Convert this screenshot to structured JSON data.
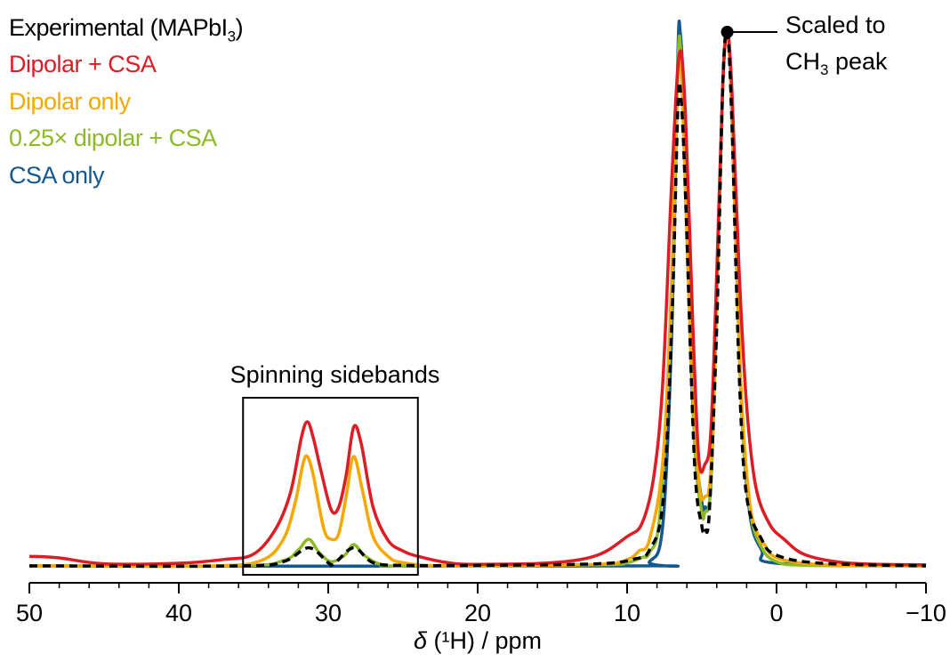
{
  "chart_data": {
    "type": "line",
    "xlabel": {
      "symbol": "δ",
      "rest": " (¹H) / ppm"
    },
    "xlim": [
      50,
      -10
    ],
    "ylim": [
      0,
      1
    ],
    "grid": false,
    "legend_position": "top-left",
    "x_ticks": [
      50,
      40,
      30,
      20,
      10,
      0,
      -10
    ],
    "x_tick_labels": [
      "50",
      "40",
      "30",
      "20",
      "10",
      "0",
      "−10"
    ],
    "minor_tick_step": 2,
    "annotations": {
      "box_label": "Spinning sidebands",
      "box_range_x": [
        35.7,
        24.0
      ],
      "scaled_line1": "Scaled to",
      "scaled_line2_a": "CH",
      "scaled_line2_sub": "3",
      "scaled_line2_b": " peak"
    },
    "series": [
      {
        "name": "Experimental (MAPbI3)",
        "legend_label": "Experimental (MAPbI",
        "legend_sub": "3",
        "legend_suffix": ")",
        "color": "#000000",
        "dashed": true,
        "points": [
          [
            50,
            0
          ],
          [
            36,
            0
          ],
          [
            33,
            0.008
          ],
          [
            31.3,
            0.034
          ],
          [
            30,
            0.006
          ],
          [
            29.6,
            0.004
          ],
          [
            28.3,
            0.034
          ],
          [
            27,
            0.006
          ],
          [
            25,
            0.001
          ],
          [
            20,
            0.001
          ],
          [
            12,
            0.004
          ],
          [
            9.5,
            0.013
          ],
          [
            8.5,
            0.03
          ],
          [
            7.6,
            0.12
          ],
          [
            7.0,
            0.46
          ],
          [
            6.6,
            0.86
          ],
          [
            6.4,
            0.88
          ],
          [
            6.1,
            0.7
          ],
          [
            5.5,
            0.2
          ],
          [
            5.0,
            0.075
          ],
          [
            4.8,
            0.07
          ],
          [
            4.5,
            0.1
          ],
          [
            4.0,
            0.45
          ],
          [
            3.6,
            0.9
          ],
          [
            3.3,
            1.0
          ],
          [
            3.0,
            0.84
          ],
          [
            2.5,
            0.36
          ],
          [
            2.0,
            0.13
          ],
          [
            1.0,
            0.05
          ],
          [
            0,
            0.02
          ],
          [
            -3,
            0.005
          ],
          [
            -10,
            0
          ]
        ]
      },
      {
        "name": "Dipolar + CSA",
        "legend_label": "Dipolar + CSA",
        "color": "#dd1c24",
        "dashed": false,
        "points": [
          [
            50,
            0.018
          ],
          [
            48,
            0.015
          ],
          [
            45,
            0.004
          ],
          [
            40,
            0.005
          ],
          [
            37,
            0.012
          ],
          [
            35,
            0.022
          ],
          [
            33.5,
            0.07
          ],
          [
            32.5,
            0.14
          ],
          [
            31.8,
            0.24
          ],
          [
            31.4,
            0.27
          ],
          [
            31,
            0.24
          ],
          [
            30.5,
            0.18
          ],
          [
            29.8,
            0.105
          ],
          [
            29.3,
            0.11
          ],
          [
            28.8,
            0.17
          ],
          [
            28.3,
            0.26
          ],
          [
            27.8,
            0.23
          ],
          [
            27,
            0.11
          ],
          [
            26,
            0.048
          ],
          [
            25,
            0.028
          ],
          [
            24,
            0.018
          ],
          [
            22,
            0.006
          ],
          [
            20,
            0.003
          ],
          [
            15,
            0.006
          ],
          [
            12,
            0.02
          ],
          [
            10,
            0.055
          ],
          [
            9,
            0.08
          ],
          [
            8.2,
            0.17
          ],
          [
            7.6,
            0.35
          ],
          [
            7.0,
            0.73
          ],
          [
            6.5,
            0.96
          ],
          [
            6.1,
            0.85
          ],
          [
            5.6,
            0.45
          ],
          [
            5.2,
            0.2
          ],
          [
            4.8,
            0.19
          ],
          [
            4.4,
            0.25
          ],
          [
            4.0,
            0.55
          ],
          [
            3.6,
            0.9
          ],
          [
            3.3,
            1.0
          ],
          [
            3.0,
            0.9
          ],
          [
            2.5,
            0.55
          ],
          [
            2.0,
            0.3
          ],
          [
            1.4,
            0.15
          ],
          [
            0.5,
            0.08
          ],
          [
            -0.5,
            0.05
          ],
          [
            -2,
            0.02
          ],
          [
            -5,
            0.005
          ],
          [
            -10,
            0.002
          ]
        ]
      },
      {
        "name": "Dipolar only",
        "legend_label": "Dipolar only",
        "color": "#f7a800",
        "dashed": false,
        "points": [
          [
            50,
            0
          ],
          [
            38,
            0
          ],
          [
            34.5,
            0.01
          ],
          [
            33,
            0.05
          ],
          [
            32.2,
            0.12
          ],
          [
            31.7,
            0.19
          ],
          [
            31.4,
            0.205
          ],
          [
            31,
            0.17
          ],
          [
            30.3,
            0.07
          ],
          [
            29.8,
            0.05
          ],
          [
            29.3,
            0.06
          ],
          [
            28.8,
            0.13
          ],
          [
            28.3,
            0.205
          ],
          [
            27.7,
            0.14
          ],
          [
            27,
            0.055
          ],
          [
            26,
            0.018
          ],
          [
            25,
            0.006
          ],
          [
            22,
            0
          ],
          [
            12,
            0.003
          ],
          [
            10,
            0.012
          ],
          [
            9.2,
            0.028
          ],
          [
            8.5,
            0.05
          ],
          [
            7.6,
            0.2
          ],
          [
            7.0,
            0.55
          ],
          [
            6.6,
            0.93
          ],
          [
            6.3,
            0.88
          ],
          [
            5.8,
            0.45
          ],
          [
            5.2,
            0.16
          ],
          [
            4.8,
            0.13
          ],
          [
            4.4,
            0.18
          ],
          [
            4.0,
            0.5
          ],
          [
            3.6,
            0.9
          ],
          [
            3.3,
            1.0
          ],
          [
            3.0,
            0.86
          ],
          [
            2.4,
            0.35
          ],
          [
            1.8,
            0.12
          ],
          [
            1.1,
            0.05
          ],
          [
            0.8,
            0.04
          ],
          [
            0.3,
            0.02
          ],
          [
            -1,
            0.008
          ],
          [
            -4,
            0.001
          ],
          [
            -10,
            0
          ]
        ]
      },
      {
        "name": "0.25× dipolar + CSA",
        "legend_label": "0.25× dipolar + CSA",
        "color": "#8dbb25",
        "dashed": false,
        "points": [
          [
            50,
            0
          ],
          [
            36,
            0
          ],
          [
            33,
            0.01
          ],
          [
            32,
            0.03
          ],
          [
            31.3,
            0.05
          ],
          [
            30.6,
            0.025
          ],
          [
            29.8,
            0.008
          ],
          [
            28.9,
            0.02
          ],
          [
            28.3,
            0.04
          ],
          [
            27.6,
            0.02
          ],
          [
            26.5,
            0.003
          ],
          [
            25,
            0
          ],
          [
            12,
            0.002
          ],
          [
            10,
            0.006
          ],
          [
            9,
            0.016
          ],
          [
            8.5,
            0.025
          ],
          [
            7.8,
            0.1
          ],
          [
            7.0,
            0.5
          ],
          [
            6.6,
            0.94
          ],
          [
            6.4,
            0.96
          ],
          [
            6.0,
            0.72
          ],
          [
            5.5,
            0.24
          ],
          [
            5.0,
            0.1
          ],
          [
            4.8,
            0.1
          ],
          [
            4.4,
            0.15
          ],
          [
            4.0,
            0.5
          ],
          [
            3.6,
            0.9
          ],
          [
            3.3,
            1.0
          ],
          [
            3.0,
            0.86
          ],
          [
            2.4,
            0.33
          ],
          [
            1.8,
            0.11
          ],
          [
            1.0,
            0.035
          ],
          [
            0,
            0.008
          ],
          [
            -2,
            0.001
          ],
          [
            -10,
            0
          ]
        ]
      },
      {
        "name": "CSA only",
        "legend_label": "CSA only",
        "color": "#14588e",
        "dashed": false,
        "points": [
          [
            50,
            0
          ],
          [
            10,
            0
          ],
          [
            8.5,
            0.008
          ],
          [
            7.6,
            0.08
          ],
          [
            7.0,
            0.45
          ],
          [
            6.6,
            0.96
          ],
          [
            6.45,
            1.0
          ],
          [
            6.2,
            0.86
          ],
          [
            5.6,
            0.3
          ],
          [
            5.0,
            0.12
          ],
          [
            4.8,
            0.11
          ],
          [
            4.4,
            0.15
          ],
          [
            4.0,
            0.5
          ],
          [
            3.6,
            0.9
          ],
          [
            3.3,
            1.0
          ],
          [
            3.0,
            0.86
          ],
          [
            2.4,
            0.33
          ],
          [
            1.8,
            0.1
          ],
          [
            1.0,
            0.03
          ],
          [
            0,
            0.005
          ],
          [
            -10,
            0
          ]
        ]
      }
    ]
  }
}
